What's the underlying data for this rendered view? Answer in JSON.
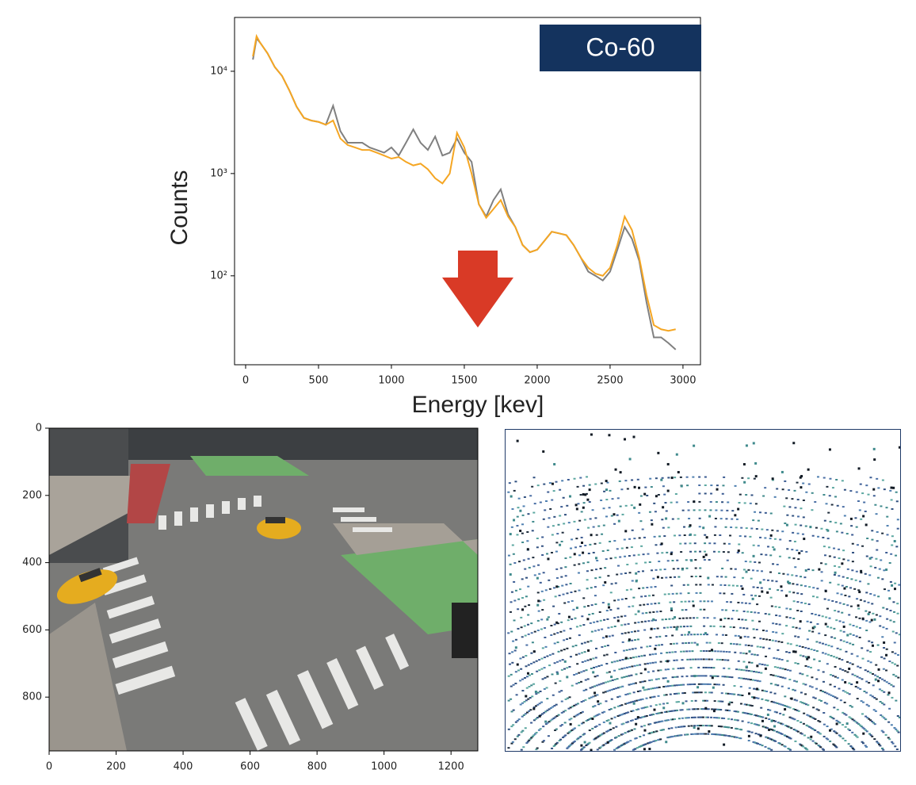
{
  "chart_data": [
    {
      "type": "line",
      "title": "Co-60",
      "y_label": "Counts",
      "x_label": "Energy [kev]",
      "log_y": true,
      "x": [
        50,
        75,
        100,
        150,
        200,
        250,
        300,
        350,
        400,
        450,
        500,
        550,
        600,
        650,
        700,
        750,
        800,
        850,
        900,
        950,
        1000,
        1050,
        1100,
        1150,
        1200,
        1250,
        1300,
        1350,
        1400,
        1450,
        1500,
        1550,
        1600,
        1650,
        1700,
        1750,
        1800,
        1850,
        1900,
        1950,
        2000,
        2050,
        2100,
        2150,
        2200,
        2250,
        2300,
        2350,
        2400,
        2450,
        2500,
        2550,
        2600,
        2650,
        2700,
        2750,
        2800,
        2850,
        2900,
        2950
      ],
      "series": [
        {
          "color": "#808080",
          "values": [
            13000,
            21000,
            19000,
            15000,
            11000,
            9000,
            6500,
            4500,
            3500,
            3300,
            3200,
            3000,
            4600,
            2600,
            2000,
            2000,
            2000,
            1800,
            1700,
            1600,
            1800,
            1500,
            2000,
            2700,
            2000,
            1700,
            2300,
            1500,
            1600,
            2200,
            1600,
            1300,
            500,
            380,
            550,
            700,
            400,
            300,
            200,
            170,
            180,
            220,
            270,
            260,
            250,
            200,
            150,
            110,
            100,
            90,
            110,
            180,
            300,
            230,
            140,
            55,
            25,
            25,
            22,
            19
          ]
        },
        {
          "color": "#f5a623",
          "values": [
            14000,
            22000,
            19000,
            15000,
            11000,
            9000,
            6500,
            4500,
            3500,
            3300,
            3200,
            3000,
            3300,
            2200,
            1900,
            1800,
            1700,
            1700,
            1600,
            1500,
            1400,
            1450,
            1300,
            1200,
            1250,
            1100,
            900,
            800,
            1000,
            2500,
            1800,
            1000,
            500,
            370,
            450,
            550,
            380,
            300,
            200,
            170,
            180,
            220,
            270,
            260,
            250,
            200,
            150,
            120,
            105,
            100,
            120,
            200,
            380,
            280,
            150,
            65,
            33,
            30,
            29,
            30
          ]
        }
      ],
      "xlim": [
        -76,
        3120
      ],
      "xticks": [
        0,
        500,
        1000,
        1500,
        2000,
        2500,
        3000
      ],
      "ylim": [
        13.5,
        33600
      ],
      "yticks": [
        {
          "value": 100,
          "label": "10²"
        },
        {
          "value": 1000,
          "label": "10³"
        },
        {
          "value": 10000,
          "label": "10⁴"
        }
      ]
    },
    {
      "type": "image",
      "xlim": [
        0,
        1280
      ],
      "xticks": [
        0,
        200,
        400,
        600,
        800,
        1000,
        1200
      ],
      "ylim": [
        960,
        0
      ],
      "yticks": [
        0,
        200,
        400,
        600,
        800
      ]
    }
  ]
}
